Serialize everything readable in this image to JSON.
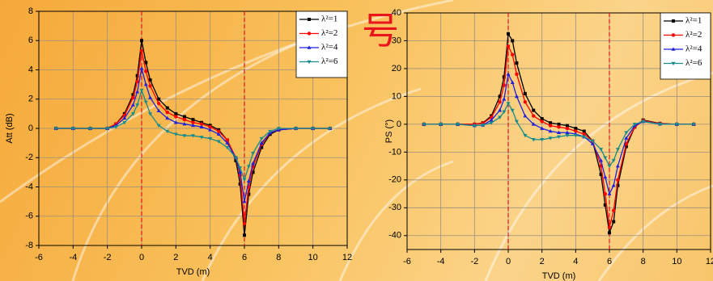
{
  "overlay_text": "号",
  "chart_data": [
    {
      "type": "line",
      "y_label": "Att (dB)",
      "x_label": "TVD (m)",
      "xlim": [
        -6,
        12
      ],
      "xticks": [
        -6,
        -4,
        -2,
        0,
        2,
        4,
        6,
        8,
        10,
        12
      ],
      "ylim": [
        -8,
        8
      ],
      "yticks": [
        -8,
        -6,
        -4,
        -2,
        0,
        2,
        4,
        6,
        8
      ],
      "grid": true,
      "legend": "top-right",
      "vlines": [
        0,
        6
      ],
      "vline_color": "#e0141e",
      "x": [
        -5,
        -4,
        -3,
        -2,
        -1.5,
        -1,
        -0.5,
        -0.25,
        0,
        0.25,
        0.5,
        1,
        1.5,
        2,
        2.5,
        3,
        3.5,
        4,
        4.5,
        5,
        5.5,
        5.75,
        6,
        6.25,
        6.5,
        7,
        7.5,
        8,
        9,
        10,
        11
      ],
      "series": [
        {
          "name": "λ²=1",
          "color": "#000000",
          "marker": "square",
          "values": [
            0,
            0,
            0,
            0,
            0.3,
            1.0,
            2.3,
            3.6,
            6.0,
            4.5,
            3.3,
            2.0,
            1.4,
            1.0,
            0.8,
            0.6,
            0.4,
            0.2,
            -0.1,
            -0.8,
            -2.2,
            -3.8,
            -7.3,
            -4.5,
            -3.0,
            -1.3,
            -0.4,
            -0.1,
            0,
            0,
            0
          ]
        },
        {
          "name": "λ²=2",
          "color": "#ff0000",
          "marker": "circle",
          "values": [
            0,
            0,
            0,
            0,
            0.3,
            0.9,
            2.1,
            3.2,
            5.3,
            3.9,
            2.9,
            1.7,
            1.1,
            0.8,
            0.6,
            0.4,
            0.3,
            0.1,
            -0.2,
            -0.8,
            -2.0,
            -3.2,
            -6.5,
            -4.0,
            -2.6,
            -1.1,
            -0.3,
            -0.1,
            0,
            0,
            0
          ]
        },
        {
          "name": "λ²=4",
          "color": "#1f1fe0",
          "marker": "triangle",
          "values": [
            0,
            0,
            0,
            0,
            0.2,
            0.7,
            1.6,
            2.5,
            4.1,
            3.0,
            2.1,
            1.2,
            0.7,
            0.4,
            0.3,
            0.2,
            0.1,
            -0.1,
            -0.4,
            -1.0,
            -2.0,
            -3.0,
            -5.0,
            -3.6,
            -2.4,
            -1.0,
            -0.3,
            -0.1,
            0,
            0,
            0
          ]
        },
        {
          "name": "λ²=6",
          "color": "#168c8c",
          "marker": "triangle-down",
          "values": [
            0,
            0,
            0,
            0,
            0.1,
            0.4,
            1.0,
            1.6,
            2.6,
            1.8,
            1.0,
            0.2,
            -0.2,
            -0.4,
            -0.5,
            -0.5,
            -0.6,
            -0.7,
            -0.9,
            -1.3,
            -2.0,
            -2.7,
            -3.5,
            -2.6,
            -1.7,
            -0.7,
            -0.2,
            0,
            0,
            0,
            0
          ]
        }
      ]
    },
    {
      "type": "line",
      "y_label": "PS (°)",
      "x_label": "TVD (m)",
      "xlim": [
        -6,
        12
      ],
      "xticks": [
        -6,
        -4,
        -2,
        0,
        2,
        4,
        6,
        8,
        10,
        12
      ],
      "ylim": [
        -45,
        40
      ],
      "yticks": [
        -40,
        -30,
        -20,
        -10,
        0,
        10,
        20,
        30,
        40
      ],
      "grid": true,
      "legend": "top-right",
      "vlines": [
        0,
        6
      ],
      "vline_color": "#e0141e",
      "x": [
        -5,
        -4,
        -3,
        -2,
        -1.5,
        -1,
        -0.5,
        -0.25,
        0,
        0.25,
        0.5,
        1,
        1.5,
        2,
        2.5,
        3,
        3.5,
        4,
        4.5,
        5,
        5.5,
        5.75,
        6,
        6.25,
        6.5,
        7,
        7.5,
        8,
        9,
        10,
        11
      ],
      "series": [
        {
          "name": "λ²=1",
          "color": "#000000",
          "marker": "square",
          "values": [
            0,
            0,
            0,
            0,
            0.5,
            3,
            10,
            17,
            32.5,
            30,
            22,
            11,
            5,
            2,
            0.5,
            0,
            -0.5,
            -1.5,
            -2.5,
            -6,
            -18,
            -29,
            -39,
            -35,
            -22,
            -8,
            -1,
            1.5,
            0.3,
            0,
            0
          ]
        },
        {
          "name": "λ²=2",
          "color": "#ff0000",
          "marker": "circle",
          "values": [
            0,
            0,
            0,
            0,
            0.4,
            2.5,
            8,
            14,
            28,
            25,
            18,
            8,
            3,
            1,
            -0.5,
            -1,
            -1.5,
            -2.5,
            -3.5,
            -6,
            -15,
            -25,
            -37,
            -31,
            -20,
            -7,
            -1,
            1.3,
            0.2,
            0,
            0
          ]
        },
        {
          "name": "λ²=4",
          "color": "#1f1fe0",
          "marker": "triangle",
          "values": [
            0,
            0,
            0,
            -0.5,
            -0.3,
            1.5,
            5,
            9,
            18,
            15,
            10,
            3,
            0,
            -1.5,
            -2.5,
            -3,
            -3,
            -3.5,
            -4.5,
            -7,
            -13,
            -19,
            -25,
            -22,
            -15,
            -5,
            -0.5,
            1,
            0.1,
            0,
            0
          ]
        },
        {
          "name": "λ²=6",
          "color": "#168c8c",
          "marker": "triangle-down",
          "values": [
            0,
            0,
            0,
            -0.5,
            -0.3,
            0.5,
            2.5,
            4.5,
            7.5,
            5,
            1,
            -4,
            -5.5,
            -5.5,
            -5,
            -4.5,
            -4,
            -4,
            -4.5,
            -6,
            -9,
            -12,
            -15,
            -13,
            -9,
            -3,
            0,
            1,
            0,
            0,
            0
          ]
        }
      ]
    }
  ]
}
